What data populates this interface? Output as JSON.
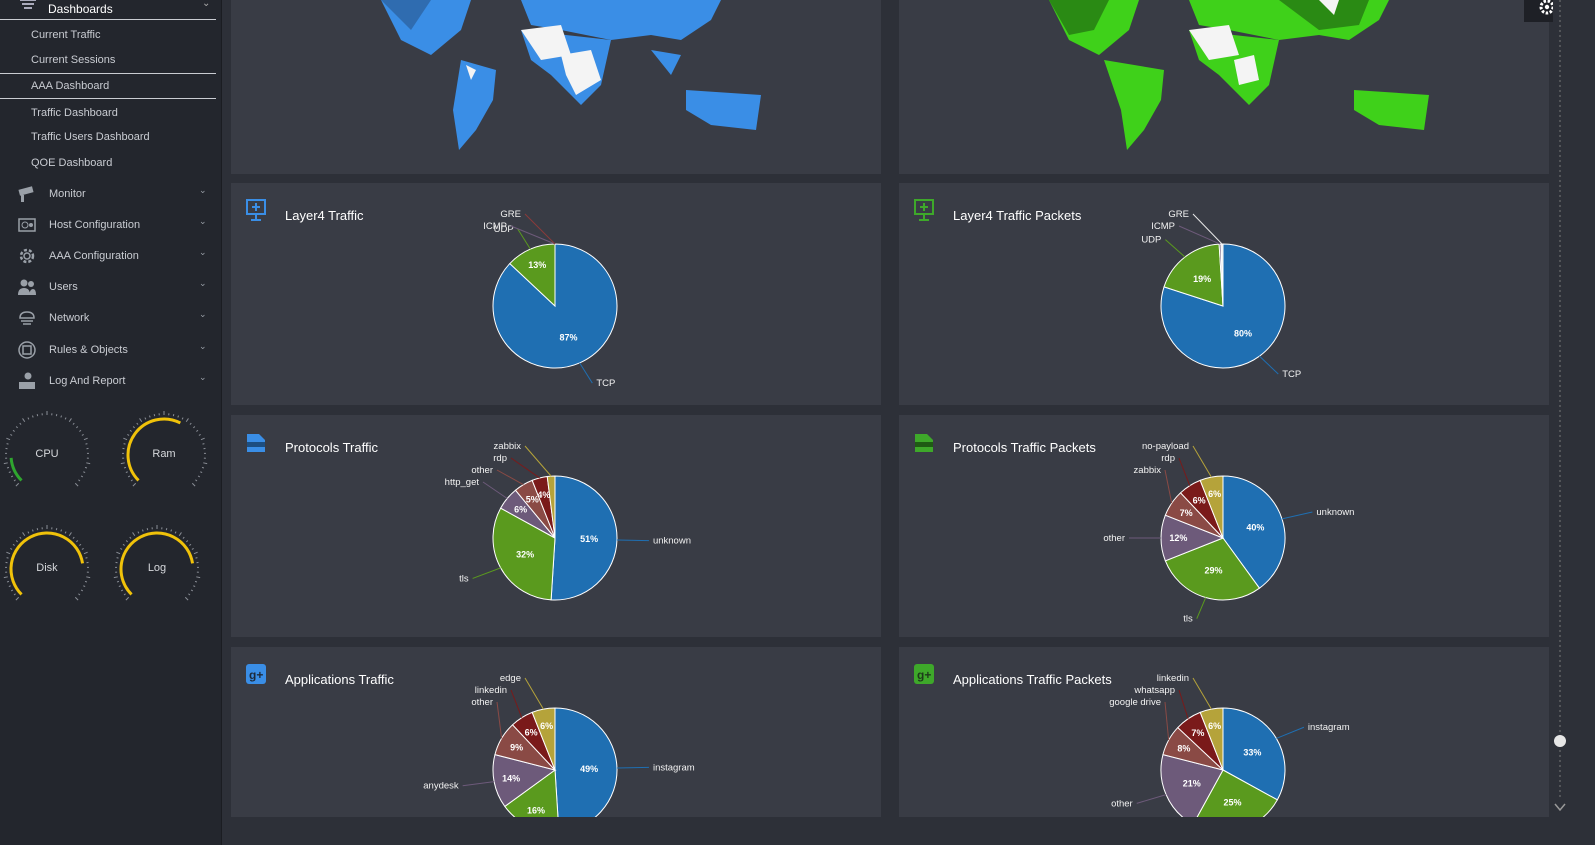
{
  "sidebar": {
    "top_item": "Dashboards",
    "sub_items": [
      "Current Traffic",
      "Current Sessions",
      "AAA Dashboard",
      "Traffic Dashboard",
      "Traffic Users Dashboard",
      "QOE Dashboard"
    ],
    "menu": [
      {
        "label": "Monitor",
        "icon": "camera-icon"
      },
      {
        "label": "Host Configuration",
        "icon": "server-icon"
      },
      {
        "label": "AAA Configuration",
        "icon": "gear-icon"
      },
      {
        "label": "Users",
        "icon": "users-icon"
      },
      {
        "label": "Network",
        "icon": "network-icon"
      },
      {
        "label": "Rules & Objects",
        "icon": "rules-icon"
      },
      {
        "label": "Log And Report",
        "icon": "report-icon"
      }
    ],
    "gauges": [
      {
        "label": "CPU",
        "value": 0.15
      },
      {
        "label": "Ram",
        "value": 0.6
      },
      {
        "label": "Disk",
        "value": 0.8
      },
      {
        "label": "Log",
        "value": 0.8
      }
    ]
  },
  "panels": [
    {
      "title": "Layer4 Traffic",
      "icon": "network-monitor-icon",
      "color": "#3a8ee6",
      "slices": [
        {
          "label": "TCP",
          "value": 87,
          "pct": "87%",
          "color": "#1f6fb2"
        },
        {
          "label": "UDP",
          "value": 13,
          "pct": "13%",
          "color": "#5a9a1e"
        },
        {
          "label": "ICMP",
          "value": 0,
          "pct": "",
          "color": "#6d5a7a"
        },
        {
          "label": "GRE",
          "value": 0,
          "pct": "",
          "color": "#8a3a3a"
        }
      ]
    },
    {
      "title": "Layer4 Traffic Packets",
      "icon": "network-monitor-icon",
      "color": "#3ea82a",
      "slices": [
        {
          "label": "TCP",
          "value": 80,
          "pct": "80%",
          "color": "#1f6fb2"
        },
        {
          "label": "UDP",
          "value": 19,
          "pct": "19%",
          "color": "#5a9a1e"
        },
        {
          "label": "ICMP",
          "value": 0.5,
          "pct": "",
          "color": "#6d5a7a"
        },
        {
          "label": "GRE",
          "value": 0.5,
          "pct": "",
          "color": "#e8e8e8"
        }
      ]
    },
    {
      "title": "Protocols Traffic",
      "icon": "http-icon",
      "color": "#3a8ee6",
      "slices": [
        {
          "label": "unknown",
          "value": 51,
          "pct": "51%",
          "color": "#1f6fb2"
        },
        {
          "label": "tls",
          "value": 32,
          "pct": "32%",
          "color": "#5a9a1e"
        },
        {
          "label": "http_get",
          "value": 6,
          "pct": "6%",
          "color": "#6d5a7a"
        },
        {
          "label": "other",
          "value": 5,
          "pct": "5%",
          "color": "#8a4a45"
        },
        {
          "label": "rdp",
          "value": 4,
          "pct": "4%",
          "color": "#7a1a1a"
        },
        {
          "label": "zabbix",
          "value": 2,
          "pct": "",
          "color": "#b5a33a"
        }
      ]
    },
    {
      "title": "Protocols Traffic Packets",
      "icon": "http-icon",
      "color": "#3ea82a",
      "slices": [
        {
          "label": "unknown",
          "value": 40,
          "pct": "40%",
          "color": "#1f6fb2"
        },
        {
          "label": "tls",
          "value": 29,
          "pct": "29%",
          "color": "#5a9a1e"
        },
        {
          "label": "other",
          "value": 12,
          "pct": "12%",
          "color": "#6d5a7a"
        },
        {
          "label": "zabbix",
          "value": 7,
          "pct": "7%",
          "color": "#8a4a45"
        },
        {
          "label": "rdp",
          "value": 6,
          "pct": "6%",
          "color": "#7a1a1a"
        },
        {
          "label": "no-payload",
          "value": 6,
          "pct": "6%",
          "color": "#b5a33a"
        }
      ]
    },
    {
      "title": "Applications Traffic",
      "icon": "google-plus-icon",
      "color": "#3a8ee6",
      "slices": [
        {
          "label": "instagram",
          "value": 49,
          "pct": "49%",
          "color": "#1f6fb2"
        },
        {
          "label": "",
          "value": 16,
          "pct": "16%",
          "color": "#5a9a1e"
        },
        {
          "label": "anydesk",
          "value": 14,
          "pct": "14%",
          "color": "#6d5a7a"
        },
        {
          "label": "other",
          "value": 9,
          "pct": "9%",
          "color": "#8a4a45"
        },
        {
          "label": "linkedin",
          "value": 6,
          "pct": "6%",
          "color": "#7a1a1a"
        },
        {
          "label": "edge",
          "value": 6,
          "pct": "6%",
          "color": "#b5a33a"
        }
      ]
    },
    {
      "title": "Applications Traffic Packets",
      "icon": "google-plus-icon",
      "color": "#3ea82a",
      "slices": [
        {
          "label": "instagram",
          "value": 33,
          "pct": "33%",
          "color": "#1f6fb2"
        },
        {
          "label": "",
          "value": 25,
          "pct": "25%",
          "color": "#5a9a1e"
        },
        {
          "label": "other",
          "value": 21,
          "pct": "21%",
          "color": "#6d5a7a"
        },
        {
          "label": "google drive",
          "value": 8,
          "pct": "8%",
          "color": "#8a4a45"
        },
        {
          "label": "whatsapp",
          "value": 7,
          "pct": "7%",
          "color": "#7a1a1a"
        },
        {
          "label": "linkedin",
          "value": 6,
          "pct": "6%",
          "color": "#b5a33a"
        }
      ]
    }
  ]
}
